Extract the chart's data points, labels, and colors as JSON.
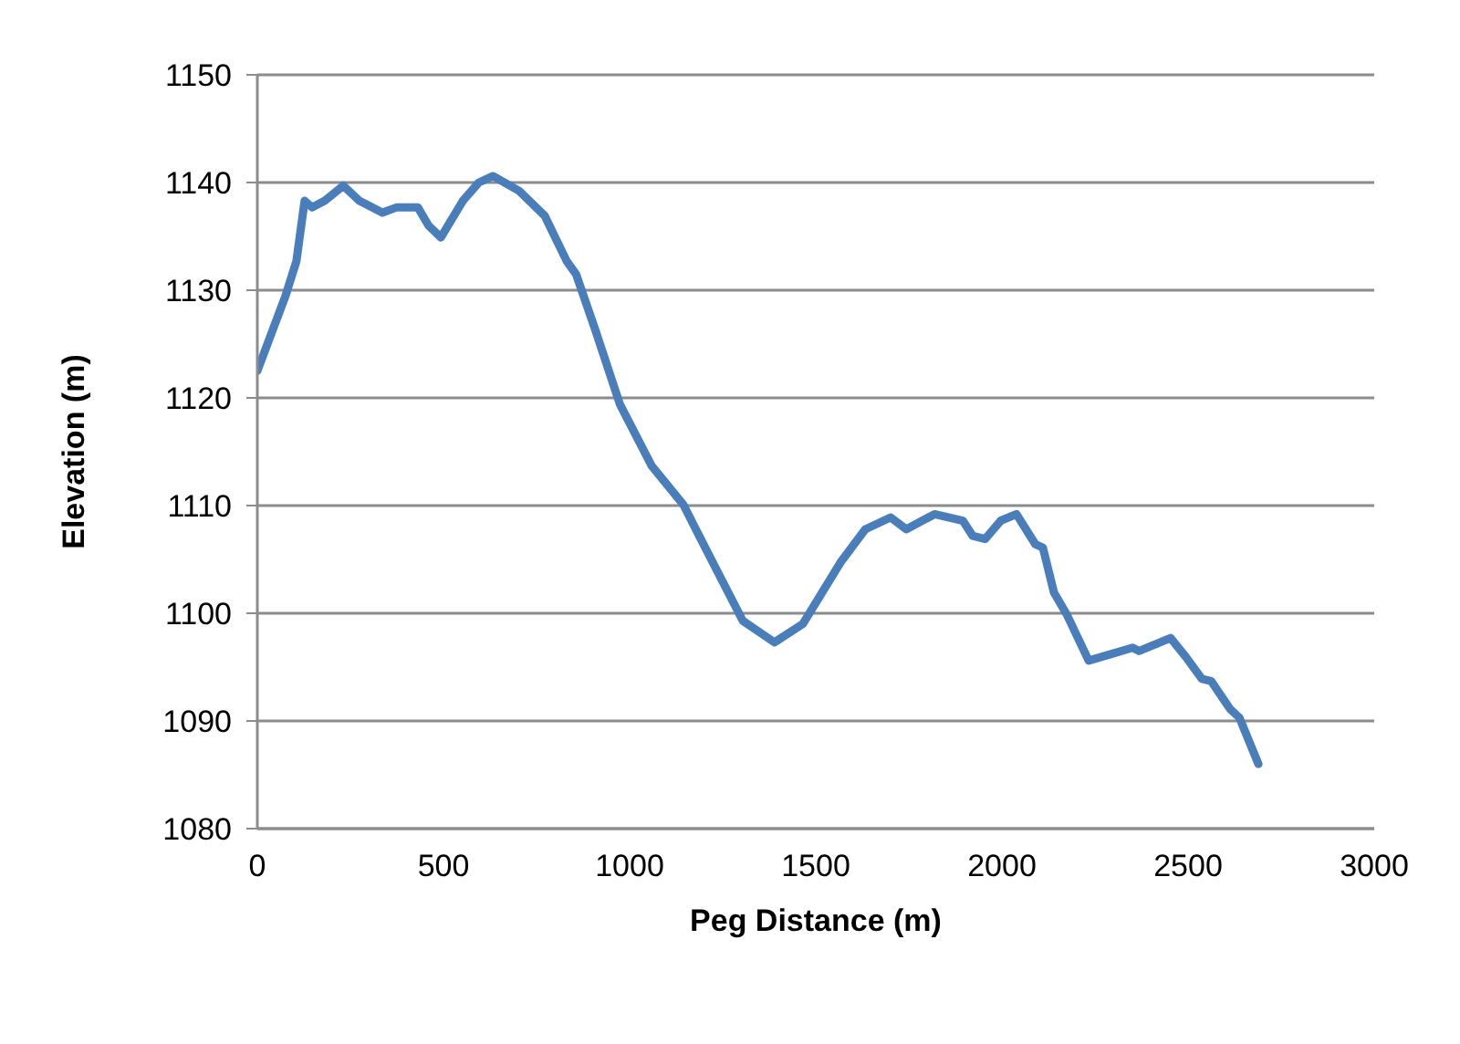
{
  "chart_data": {
    "type": "line",
    "xlabel": "Peg Distance (m)",
    "ylabel": "Elevation (m)",
    "x": [
      0,
      76,
      105,
      127,
      147,
      181,
      231,
      274,
      336,
      375,
      431,
      460,
      493,
      552,
      595,
      633,
      704,
      772,
      831,
      856,
      907,
      974,
      1059,
      1144,
      1228,
      1304,
      1389,
      1465,
      1566,
      1633,
      1701,
      1743,
      1819,
      1895,
      1921,
      1955,
      1997,
      2039,
      2090,
      2110,
      2140,
      2174,
      2233,
      2292,
      2351,
      2368,
      2453,
      2495,
      2537,
      2562,
      2613,
      2638,
      2689
    ],
    "series": [
      {
        "color": "#4a7ebb",
        "values": [
          1122.5,
          1129.5,
          1132.7,
          1138.3,
          1137.7,
          1138.3,
          1139.7,
          1138.3,
          1137.2,
          1137.7,
          1137.7,
          1136,
          1134.9,
          1138.3,
          1140,
          1140.6,
          1139.2,
          1136.9,
          1132.7,
          1131.5,
          1126.4,
          1119.4,
          1113.7,
          1110.1,
          1104.4,
          1099.3,
          1097.3,
          1099,
          1104.7,
          1107.8,
          1108.9,
          1107.8,
          1109.2,
          1108.6,
          1107.2,
          1106.9,
          1108.6,
          1109.2,
          1106.4,
          1106.1,
          1101.9,
          1099.9,
          1095.6,
          1096.2,
          1096.8,
          1096.5,
          1097.7,
          1095.9,
          1093.9,
          1093.7,
          1091.1,
          1090.3,
          1086
        ]
      }
    ],
    "xlim": [
      0,
      3000
    ],
    "xticks": [
      0,
      500,
      1000,
      1500,
      2000,
      2500,
      3000
    ],
    "ylim": [
      1080,
      1150
    ],
    "yticks": [
      1080,
      1090,
      1100,
      1110,
      1120,
      1130,
      1140,
      1150
    ],
    "grid": "y",
    "legend": false,
    "marker": "none",
    "line_style": "solid"
  }
}
